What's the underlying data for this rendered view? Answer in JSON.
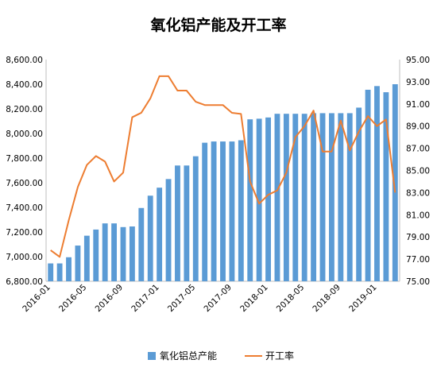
{
  "chart_data": {
    "type": "bar",
    "title": "氧化铝产能及开工率",
    "x": [
      "2016-01",
      "2016-02",
      "2016-03",
      "2016-04",
      "2016-05",
      "2016-06",
      "2016-07",
      "2016-08",
      "2016-09",
      "2016-10",
      "2016-11",
      "2016-12",
      "2017-01",
      "2017-02",
      "2017-03",
      "2017-04",
      "2017-05",
      "2017-06",
      "2017-07",
      "2017-08",
      "2017-09",
      "2017-10",
      "2017-11",
      "2017-12",
      "2018-01",
      "2018-02",
      "2018-03",
      "2018-04",
      "2018-05",
      "2018-06",
      "2018-07",
      "2018-08",
      "2018-09",
      "2018-10",
      "2018-11",
      "2018-12",
      "2019-01",
      "2019-02",
      "2019-03"
    ],
    "x_tick_labels": [
      "2016-01",
      "2016-05",
      "2016-09",
      "2017-01",
      "2017-05",
      "2017-09",
      "2018-01",
      "2018-05",
      "2018-09",
      "2019-01"
    ],
    "series": [
      {
        "name": "氧化铝总产能",
        "type": "bar",
        "axis": "left",
        "color": "#5b9bd5",
        "values": [
          6945,
          6945,
          6995,
          7090,
          7170,
          7220,
          7270,
          7270,
          7240,
          7245,
          7395,
          7495,
          7560,
          7630,
          7740,
          7740,
          7815,
          7925,
          7935,
          7935,
          7935,
          7945,
          8115,
          8120,
          8130,
          8160,
          8160,
          8160,
          8160,
          8165,
          8165,
          8165,
          8165,
          8165,
          8210,
          8355,
          8385,
          8335,
          8400
        ]
      },
      {
        "name": "开工率",
        "type": "line",
        "axis": "right",
        "color": "#ed7d31",
        "values": [
          77.8,
          77.2,
          80.5,
          83.5,
          85.5,
          86.3,
          85.8,
          84.0,
          84.8,
          89.8,
          90.2,
          91.5,
          93.5,
          93.5,
          92.2,
          92.2,
          91.2,
          90.9,
          90.9,
          90.9,
          90.2,
          90.1,
          84.0,
          82.0,
          82.8,
          83.2,
          84.8,
          88.0,
          89.0,
          90.4,
          86.7,
          86.7,
          89.5,
          86.8,
          88.5,
          89.9,
          89.0,
          89.6,
          83.0
        ]
      }
    ],
    "yleft": {
      "min": 6800,
      "max": 8600,
      "step": 200,
      "tick_labels": [
        "6,800.00",
        "7,000.00",
        "7,200.00",
        "7,400.00",
        "7,600.00",
        "7,800.00",
        "8,000.00",
        "8,200.00",
        "8,400.00",
        "8,600.00"
      ]
    },
    "yright": {
      "min": 75,
      "max": 95,
      "step": 2,
      "tick_labels": [
        "75.00",
        "77.00",
        "79.00",
        "81.00",
        "83.00",
        "85.00",
        "87.00",
        "89.00",
        "91.00",
        "93.00",
        "95.00"
      ]
    },
    "grid": false,
    "legend_position": "bottom"
  }
}
